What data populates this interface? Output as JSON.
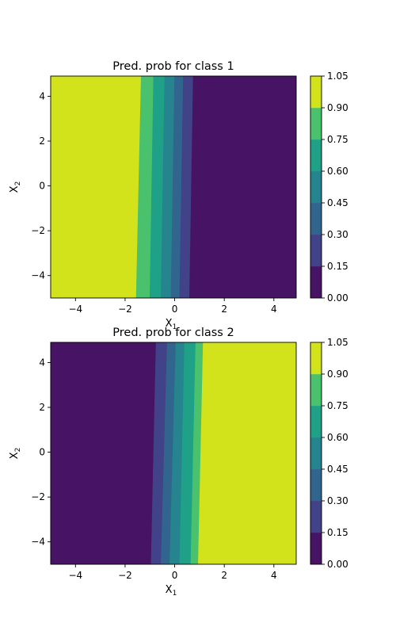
{
  "chart_data": [
    {
      "type": "contourf",
      "title": "Pred. prob for class 1",
      "xlabel": "X",
      "xlabel_sub": "1",
      "ylabel": "X",
      "ylabel_sub": "2",
      "xlim": [
        -5,
        4.9
      ],
      "ylim": [
        -5,
        4.9
      ],
      "xticks": [
        -4,
        -2,
        0,
        2,
        4
      ],
      "yticks": [
        -4,
        -2,
        0,
        2,
        4
      ],
      "xtick_labels": [
        "−4",
        "−2",
        "0",
        "2",
        "4"
      ],
      "ytick_labels": [
        "−4",
        "−2",
        "0",
        "2",
        "4"
      ],
      "levels": [
        0.0,
        0.15,
        0.3,
        0.45,
        0.6,
        0.75,
        0.9,
        1.05
      ],
      "colorbar_labels": [
        "0.00",
        "0.15",
        "0.30",
        "0.45",
        "0.60",
        "0.75",
        "0.90",
        "1.05"
      ],
      "colors": [
        "#471365",
        "#414287",
        "#32658e",
        "#25848d",
        "#1fa187",
        "#4ac16d",
        "#d2e21b"
      ],
      "boundaries": [
        {
          "top": 0.75,
          "bottom": 0.6
        },
        {
          "top": 0.35,
          "bottom": 0.2
        },
        {
          "top": 0.0,
          "bottom": -0.15
        },
        {
          "top": -0.4,
          "bottom": -0.55
        },
        {
          "top": -0.85,
          "bottom": -1.0
        },
        {
          "top": -1.35,
          "bottom": -1.55
        }
      ]
    },
    {
      "type": "contourf",
      "title": "Pred. prob for class 2",
      "xlabel": "X",
      "xlabel_sub": "1",
      "ylabel": "X",
      "ylabel_sub": "2",
      "xlim": [
        -5,
        4.9
      ],
      "ylim": [
        -5,
        4.9
      ],
      "xticks": [
        -4,
        -2,
        0,
        2,
        4
      ],
      "yticks": [
        -4,
        -2,
        0,
        2,
        4
      ],
      "xtick_labels": [
        "−4",
        "−2",
        "0",
        "2",
        "4"
      ],
      "ytick_labels": [
        "−4",
        "−2",
        "0",
        "2",
        "4"
      ],
      "levels": [
        0.0,
        0.15,
        0.3,
        0.45,
        0.6,
        0.75,
        0.9,
        1.05
      ],
      "colorbar_labels": [
        "0.00",
        "0.15",
        "0.30",
        "0.45",
        "0.60",
        "0.75",
        "0.90",
        "1.05"
      ],
      "colors": [
        "#471365",
        "#414287",
        "#32658e",
        "#25848d",
        "#1fa187",
        "#4ac16d",
        "#d2e21b"
      ],
      "boundaries": [
        {
          "top": -0.75,
          "bottom": -0.95
        },
        {
          "top": -0.3,
          "bottom": -0.55
        },
        {
          "top": 0.05,
          "bottom": -0.2
        },
        {
          "top": 0.4,
          "bottom": 0.2
        },
        {
          "top": 0.85,
          "bottom": 0.65
        },
        {
          "top": 1.15,
          "bottom": 0.95
        }
      ]
    }
  ]
}
